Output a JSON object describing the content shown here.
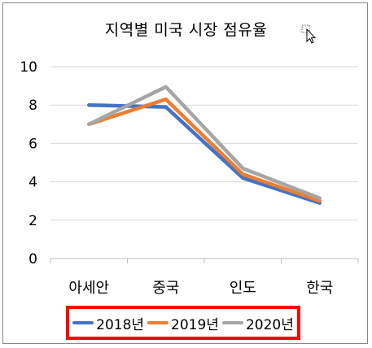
{
  "chart_data": {
    "type": "line",
    "title": "지역별 미국 시장 점유율",
    "categories": [
      "아세안",
      "중국",
      "인도",
      "한국"
    ],
    "ylim": [
      0,
      10
    ],
    "yticks": [
      "0",
      "2",
      "4",
      "6",
      "8",
      "10"
    ],
    "grid": true,
    "legend_position": "bottom",
    "series": [
      {
        "name": "2018년",
        "color": "#4472C4",
        "values": [
          8.0,
          7.9,
          4.2,
          2.9
        ]
      },
      {
        "name": "2019년",
        "color": "#ED7D31",
        "values": [
          7.0,
          8.3,
          4.4,
          3.0
        ]
      },
      {
        "name": "2020년",
        "color": "#A5A5A5",
        "values": [
          7.0,
          8.95,
          4.7,
          3.15
        ]
      }
    ]
  },
  "colors": {
    "legend_border": "#ff0000",
    "gridline": "#d9d9d9"
  },
  "icons": {
    "cursor": "mouse-pointer-icon"
  }
}
